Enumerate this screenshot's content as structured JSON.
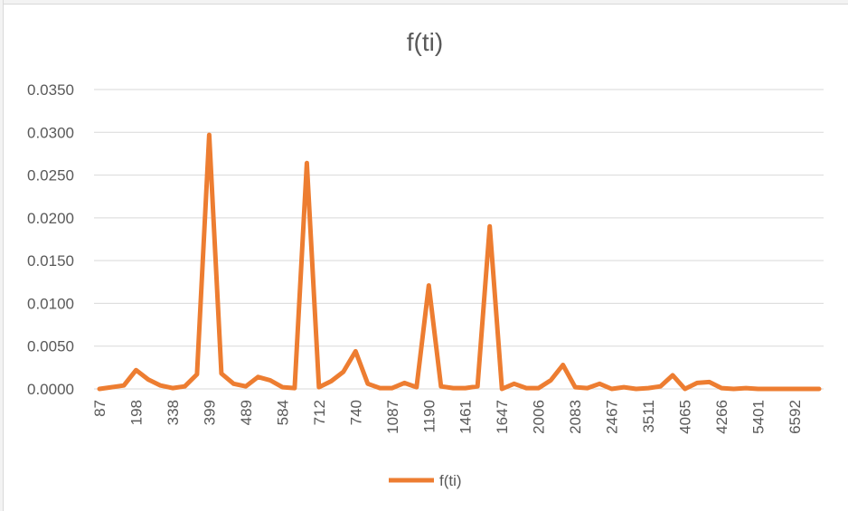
{
  "chart_data": {
    "type": "line",
    "title": "f(ti)",
    "xlabel": "",
    "ylabel": "",
    "ylim": [
      0,
      0.035
    ],
    "y_ticks": [
      "0.0000",
      "0.0050",
      "0.0100",
      "0.0150",
      "0.0200",
      "0.0250",
      "0.0300",
      "0.0350"
    ],
    "x_tick_labels": [
      "87",
      "198",
      "338",
      "399",
      "489",
      "584",
      "712",
      "740",
      "1087",
      "1190",
      "1461",
      "1647",
      "2006",
      "2083",
      "2467",
      "3511",
      "4065",
      "4266",
      "5401",
      "6592"
    ],
    "grid": true,
    "legend_position": "bottom",
    "series": [
      {
        "name": "f(ti)",
        "color": "#ED7D31",
        "values": [
          0.0,
          0.0002,
          0.0004,
          0.0022,
          0.0011,
          0.0004,
          0.0001,
          0.0003,
          0.0017,
          0.0297,
          0.0018,
          0.0006,
          0.0003,
          0.0014,
          0.001,
          0.0002,
          0.0001,
          0.0264,
          0.0002,
          0.0009,
          0.002,
          0.0044,
          0.0006,
          0.0001,
          0.0001,
          0.0007,
          0.0002,
          0.0121,
          0.0003,
          0.0001,
          0.0001,
          0.0003,
          0.019,
          0.0,
          0.0006,
          0.0001,
          0.0001,
          0.001,
          0.0028,
          0.0002,
          0.0001,
          0.0006,
          0.0,
          0.0002,
          0.0,
          0.0001,
          0.0003,
          0.0016,
          0.0,
          0.0007,
          0.0008,
          0.0001,
          0.0,
          0.0001,
          0.0,
          0.0,
          0.0,
          0.0,
          0.0,
          0.0
        ]
      }
    ]
  }
}
